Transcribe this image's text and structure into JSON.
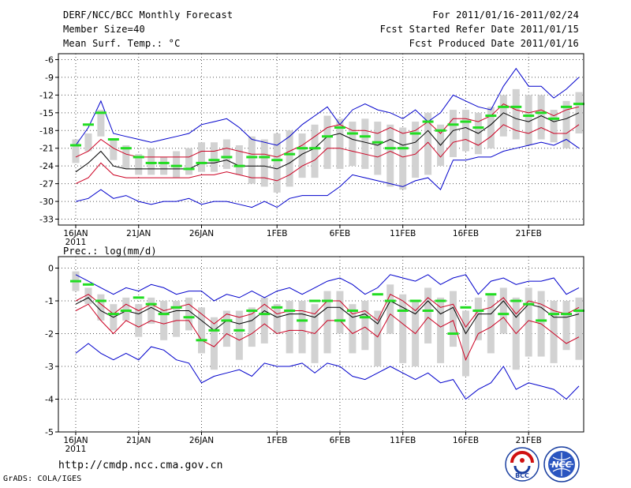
{
  "header": {
    "title": "DERF/NCC/BCC Monthly Forecast",
    "member_size": "Member Size=40",
    "variable": "Mean Surf. Temp.: °C",
    "period": "For 2011/01/16-2011/02/24",
    "started": "Fcst Started Refer Date 2011/01/15",
    "produced": "Fcst Produced Date 2011/01/16"
  },
  "footer": {
    "url": "http://cmdp.ncc.cma.gov.cn",
    "credit": "GrADS: COLA/IGES",
    "logo_bcc_text": "BCC",
    "logo_ncc_text": "NCC"
  },
  "colors": {
    "envelope": "#0000cc",
    "spread": "#cc0022",
    "mean": "#000000",
    "box": "#d2d2d2",
    "median": "#22dd22",
    "grid": "#555555"
  },
  "chart_data": [
    {
      "type": "box-line",
      "title": "",
      "ylabel": "Mean Surf. Temp.: °C",
      "xlabel": "",
      "x_start": "2011-01-16",
      "days": 40,
      "x_ticks": [
        {
          "day": 0,
          "label": "16JAN"
        },
        {
          "day": 5,
          "label": "21JAN"
        },
        {
          "day": 10,
          "label": "26JAN"
        },
        {
          "day": 16,
          "label": "1FEB"
        },
        {
          "day": 21,
          "label": "6FEB"
        },
        {
          "day": 26,
          "label": "11FEB"
        },
        {
          "day": 31,
          "label": "16FEB"
        },
        {
          "day": 36,
          "label": "21FEB"
        }
      ],
      "year_label": "2011",
      "ylim": [
        -34,
        -5
      ],
      "y_ticks": [
        -6,
        -9,
        -12,
        -15,
        -18,
        -21,
        -24,
        -27,
        -30,
        -33
      ],
      "series": {
        "max": [
          -20.5,
          -17.5,
          -13.0,
          -18.5,
          -19.0,
          -19.5,
          -20.0,
          -19.5,
          -19.0,
          -18.5,
          -17.0,
          -16.5,
          -16.0,
          -17.5,
          -19.5,
          -20.0,
          -20.5,
          -19.0,
          -17.0,
          -15.5,
          -14.0,
          -17.0,
          -14.5,
          -13.5,
          -14.5,
          -15.0,
          -16.0,
          -14.5,
          -16.5,
          -15.0,
          -12.0,
          -13.0,
          -14.0,
          -14.5,
          -10.5,
          -7.5,
          -10.5,
          -10.5,
          -12.5,
          -11.0,
          -9.0
        ],
        "upper": [
          -22.5,
          -21.5,
          -19.5,
          -21.0,
          -22.0,
          -22.5,
          -22.5,
          -22.5,
          -22.5,
          -22.5,
          -21.5,
          -21.5,
          -21.0,
          -21.5,
          -22.0,
          -22.0,
          -22.5,
          -21.5,
          -20.5,
          -19.0,
          -17.5,
          -17.0,
          -18.0,
          -18.0,
          -18.5,
          -17.5,
          -18.5,
          -18.0,
          -16.5,
          -18.5,
          -16.0,
          -16.0,
          -16.5,
          -15.5,
          -13.5,
          -14.5,
          -15.0,
          -14.5,
          -15.5,
          -14.5,
          -14.0
        ],
        "mean": [
          -25.0,
          -23.5,
          -21.5,
          -24.0,
          -24.5,
          -24.5,
          -24.5,
          -24.5,
          -24.5,
          -24.5,
          -23.5,
          -23.5,
          -23.0,
          -24.0,
          -24.0,
          -24.0,
          -24.5,
          -23.5,
          -22.0,
          -21.0,
          -19.0,
          -18.5,
          -19.5,
          -20.0,
          -20.5,
          -19.5,
          -20.5,
          -20.0,
          -18.0,
          -20.5,
          -18.0,
          -17.5,
          -18.5,
          -17.0,
          -15.0,
          -16.0,
          -16.5,
          -15.5,
          -16.5,
          -16.0,
          -15.0
        ],
        "lower": [
          -27.0,
          -26.0,
          -23.5,
          -25.5,
          -26.0,
          -26.0,
          -26.0,
          -26.0,
          -26.0,
          -26.0,
          -25.5,
          -25.5,
          -25.0,
          -25.5,
          -26.0,
          -26.0,
          -26.5,
          -25.5,
          -24.0,
          -23.0,
          -21.0,
          -21.0,
          -21.5,
          -22.0,
          -22.5,
          -21.5,
          -22.5,
          -22.0,
          -20.0,
          -22.5,
          -20.0,
          -19.5,
          -20.5,
          -19.0,
          -17.0,
          -18.0,
          -18.5,
          -17.5,
          -18.5,
          -18.5,
          -17.0
        ],
        "min": [
          -30.0,
          -29.5,
          -28.0,
          -29.5,
          -29.0,
          -30.0,
          -30.5,
          -30.0,
          -30.0,
          -29.5,
          -30.5,
          -30.0,
          -30.0,
          -30.5,
          -31.0,
          -30.0,
          -31.0,
          -29.5,
          -29.0,
          -29.0,
          -29.0,
          -27.5,
          -25.5,
          -26.0,
          -26.5,
          -27.0,
          -27.5,
          -26.5,
          -26.0,
          -28.0,
          -23.0,
          -23.0,
          -22.5,
          -22.5,
          -21.5,
          -21.0,
          -20.5,
          -20.0,
          -20.5,
          -19.5,
          -21.0
        ],
        "box_high": [
          -19.5,
          -18.5,
          -14.5,
          -19.5,
          -20.5,
          -22.0,
          -21.0,
          -22.5,
          -21.5,
          -21.0,
          -20.0,
          -20.0,
          -19.5,
          -20.5,
          -19.0,
          -19.5,
          -18.5,
          -18.0,
          -18.5,
          -17.0,
          -15.5,
          -16.0,
          -16.5,
          -16.0,
          -16.5,
          -17.0,
          -17.5,
          -16.5,
          -15.0,
          -17.0,
          -14.5,
          -14.5,
          -15.0,
          -14.0,
          -12.0,
          -11.0,
          -12.0,
          -12.0,
          -14.5,
          -13.0,
          -11.5
        ],
        "box_low": [
          -23.5,
          -21.5,
          -19.0,
          -23.0,
          -24.5,
          -25.5,
          -25.5,
          -25.5,
          -26.0,
          -25.5,
          -25.0,
          -25.0,
          -24.5,
          -25.5,
          -27.0,
          -27.5,
          -28.5,
          -27.5,
          -26.0,
          -26.0,
          -24.5,
          -24.5,
          -24.0,
          -24.5,
          -25.5,
          -27.5,
          -28.0,
          -26.0,
          -25.5,
          -24.0,
          -22.5,
          -21.5,
          -22.0,
          -21.0,
          -19.0,
          -19.5,
          -20.5,
          -19.5,
          -20.0,
          -21.0,
          -18.5
        ],
        "median": [
          -20.5,
          -17.0,
          -15.0,
          -19.5,
          -21.0,
          -22.5,
          -23.5,
          -23.5,
          -24.0,
          -24.5,
          -23.5,
          -23.0,
          -22.5,
          -24.0,
          -22.5,
          -22.5,
          -23.0,
          -22.0,
          -21.0,
          -21.0,
          -19.0,
          -17.5,
          -18.5,
          -19.0,
          -20.0,
          -21.0,
          -21.0,
          -18.5,
          -16.5,
          -18.0,
          -17.0,
          -16.5,
          -17.5,
          -15.5,
          -14.0,
          -14.0,
          -15.5,
          -15.0,
          -16.0,
          -14.0,
          -13.5
        ]
      }
    },
    {
      "type": "box-line",
      "title": "",
      "ylabel": "Prec.: log(mm/d)",
      "xlabel": "",
      "x_start": "2011-01-16",
      "days": 40,
      "x_ticks": [
        {
          "day": 0,
          "label": "16JAN"
        },
        {
          "day": 5,
          "label": "21JAN"
        },
        {
          "day": 10,
          "label": "26JAN"
        },
        {
          "day": 16,
          "label": "1FEB"
        },
        {
          "day": 21,
          "label": "6FEB"
        },
        {
          "day": 26,
          "label": "11FEB"
        },
        {
          "day": 31,
          "label": "16FEB"
        },
        {
          "day": 36,
          "label": "21FEB"
        }
      ],
      "year_label": "2011",
      "ylim": [
        -5,
        0.35
      ],
      "y_ticks": [
        0,
        -1,
        -2,
        -3,
        -4,
        -5
      ],
      "series": {
        "max": [
          -0.2,
          -0.4,
          -0.6,
          -0.8,
          -0.6,
          -0.7,
          -0.5,
          -0.6,
          -0.8,
          -0.7,
          -0.7,
          -1.0,
          -0.8,
          -0.9,
          -0.7,
          -0.9,
          -0.7,
          -0.6,
          -0.8,
          -0.6,
          -0.4,
          -0.3,
          -0.5,
          -0.8,
          -0.6,
          -0.2,
          -0.3,
          -0.4,
          -0.2,
          -0.5,
          -0.3,
          -0.2,
          -0.8,
          -0.4,
          -0.3,
          -0.5,
          -0.4,
          -0.4,
          -0.3,
          -0.8,
          -0.6
        ],
        "upper": [
          -1.0,
          -0.8,
          -1.1,
          -1.4,
          -1.1,
          -1.3,
          -1.1,
          -1.3,
          -1.2,
          -1.1,
          -1.4,
          -1.7,
          -1.4,
          -1.5,
          -1.4,
          -1.1,
          -1.4,
          -1.3,
          -1.3,
          -1.4,
          -1.0,
          -1.0,
          -1.4,
          -1.3,
          -1.6,
          -0.8,
          -1.0,
          -1.3,
          -0.9,
          -1.2,
          -1.1,
          -1.8,
          -1.3,
          -1.2,
          -0.9,
          -1.4,
          -1.0,
          -1.1,
          -1.3,
          -1.4,
          -1.2
        ],
        "mean": [
          -1.1,
          -0.9,
          -1.3,
          -1.5,
          -1.3,
          -1.4,
          -1.2,
          -1.4,
          -1.3,
          -1.3,
          -1.6,
          -1.9,
          -1.6,
          -1.7,
          -1.6,
          -1.3,
          -1.5,
          -1.4,
          -1.4,
          -1.5,
          -1.2,
          -1.2,
          -1.5,
          -1.4,
          -1.7,
          -1.0,
          -1.2,
          -1.4,
          -1.0,
          -1.4,
          -1.2,
          -2.0,
          -1.4,
          -1.4,
          -1.0,
          -1.5,
          -1.1,
          -1.2,
          -1.5,
          -1.5,
          -1.4
        ],
        "lower": [
          -1.3,
          -1.1,
          -1.6,
          -2.0,
          -1.6,
          -1.8,
          -1.6,
          -1.7,
          -1.6,
          -1.6,
          -2.2,
          -2.4,
          -2.0,
          -2.2,
          -2.0,
          -1.7,
          -2.0,
          -1.9,
          -1.9,
          -2.0,
          -1.6,
          -1.6,
          -2.0,
          -1.8,
          -2.1,
          -1.4,
          -1.7,
          -2.0,
          -1.5,
          -1.8,
          -1.6,
          -2.8,
          -2.0,
          -1.8,
          -1.5,
          -2.0,
          -1.6,
          -1.7,
          -2.0,
          -2.3,
          -2.1
        ],
        "min": [
          -2.6,
          -2.3,
          -2.6,
          -2.8,
          -2.6,
          -2.8,
          -2.4,
          -2.5,
          -2.8,
          -2.9,
          -3.5,
          -3.3,
          -3.2,
          -3.1,
          -3.3,
          -2.9,
          -3.0,
          -3.0,
          -2.9,
          -3.2,
          -2.9,
          -3.0,
          -3.3,
          -3.4,
          -3.2,
          -3.0,
          -3.2,
          -3.4,
          -3.2,
          -3.5,
          -3.4,
          -4.0,
          -3.7,
          -3.5,
          -3.0,
          -3.7,
          -3.5,
          -3.6,
          -3.7,
          -4.0,
          -3.6
        ],
        "box_high": [
          -0.1,
          -0.6,
          -0.8,
          -1.1,
          -0.9,
          -1.1,
          -0.9,
          -1.0,
          -1.0,
          -0.9,
          -1.2,
          -1.5,
          -1.3,
          -1.3,
          -1.2,
          -0.9,
          -1.1,
          -1.0,
          -1.0,
          -1.1,
          -0.7,
          -0.7,
          -1.1,
          -1.0,
          -1.3,
          -0.5,
          -0.8,
          -1.0,
          -0.6,
          -0.9,
          -0.7,
          -1.3,
          -0.9,
          -0.8,
          -0.6,
          -0.9,
          -0.6,
          -0.7,
          -1.0,
          -1.0,
          -0.9
        ],
        "box_low": [
          -0.7,
          -1.1,
          -1.6,
          -1.9,
          -1.6,
          -2.1,
          -1.7,
          -2.2,
          -2.1,
          -1.9,
          -2.6,
          -3.1,
          -2.4,
          -2.8,
          -2.4,
          -2.3,
          -2.0,
          -2.6,
          -2.6,
          -2.9,
          -2.6,
          -2.0,
          -2.6,
          -2.5,
          -3.0,
          -2.0,
          -2.9,
          -3.0,
          -2.3,
          -2.9,
          -2.4,
          -3.3,
          -2.2,
          -2.6,
          -2.0,
          -3.1,
          -2.7,
          -2.7,
          -2.9,
          -2.5,
          -2.8
        ],
        "median": [
          -0.4,
          -0.5,
          -1.0,
          -1.4,
          -1.3,
          -0.9,
          -1.1,
          -1.4,
          -1.2,
          -1.5,
          -2.2,
          -1.9,
          -1.6,
          -1.9,
          -1.3,
          -1.4,
          -1.2,
          -1.3,
          -1.6,
          -1.0,
          -1.0,
          -1.6,
          -1.3,
          -1.5,
          -0.8,
          -1.0,
          -1.3,
          -1.0,
          -1.3,
          -1.0,
          -2.0,
          -1.2,
          -1.3,
          -0.8,
          -1.4,
          -1.0,
          -1.1,
          -1.6,
          -1.4,
          -1.4,
          -1.3
        ]
      }
    }
  ]
}
